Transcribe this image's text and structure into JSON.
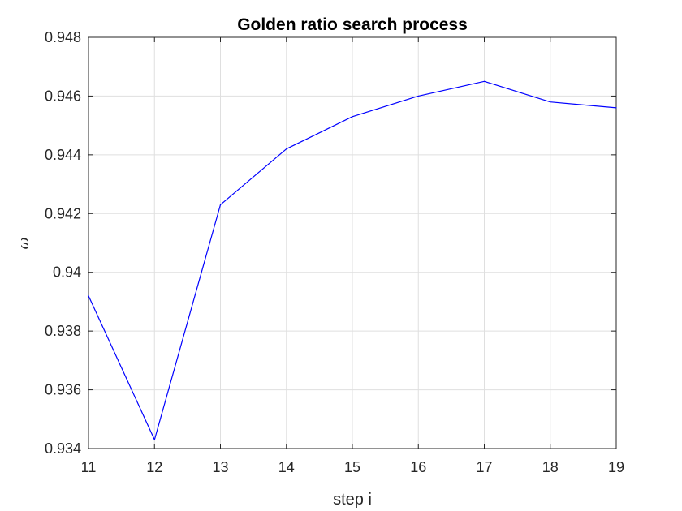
{
  "chart_data": {
    "type": "line",
    "title": "Golden ratio search process",
    "xlabel": "step i",
    "ylabel": "ω",
    "xlim": [
      11,
      19
    ],
    "ylim": [
      0.934,
      0.948
    ],
    "xticks": [
      11,
      12,
      13,
      14,
      15,
      16,
      17,
      18,
      19
    ],
    "xtick_labels": [
      "11",
      "12",
      "13",
      "14",
      "15",
      "16",
      "17",
      "18",
      "19"
    ],
    "yticks": [
      0.934,
      0.936,
      0.938,
      0.94,
      0.942,
      0.944,
      0.946,
      0.948
    ],
    "ytick_labels": [
      "0.934",
      "0.936",
      "0.938",
      "0.94",
      "0.942",
      "0.944",
      "0.946",
      "0.948"
    ],
    "grid": true,
    "line_color": "#0000ff",
    "series": [
      {
        "x": [
          11,
          12,
          13,
          14,
          15,
          16,
          17,
          18,
          19
        ],
        "values": [
          0.9392,
          0.9343,
          0.9423,
          0.9442,
          0.9453,
          0.946,
          0.9465,
          0.9458,
          0.9456
        ]
      }
    ]
  }
}
